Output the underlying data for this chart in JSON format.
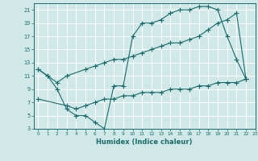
{
  "xlabel": "Humidex (Indice chaleur)",
  "xlim": [
    -0.5,
    23
  ],
  "ylim": [
    3,
    22
  ],
  "yticks": [
    3,
    5,
    7,
    9,
    11,
    13,
    15,
    17,
    19,
    21
  ],
  "xticks": [
    0,
    1,
    2,
    3,
    4,
    5,
    6,
    7,
    8,
    9,
    10,
    11,
    12,
    13,
    14,
    15,
    16,
    17,
    18,
    19,
    20,
    21,
    22,
    23
  ],
  "background_color": "#d0e8e8",
  "grid_color": "#b8d8d8",
  "line_color": "#1a6b6b",
  "line1_x": [
    0,
    1,
    2,
    3,
    4,
    5,
    6,
    7,
    8,
    9,
    10,
    11,
    12,
    13,
    14,
    15,
    16,
    17,
    18,
    19,
    20,
    21,
    22
  ],
  "line1_y": [
    12,
    11,
    9,
    6,
    5,
    5,
    4,
    3,
    9.5,
    9.5,
    17,
    19,
    19,
    19.5,
    20.5,
    21,
    21,
    21.5,
    21.5,
    21,
    17,
    13.5,
    10.5
  ],
  "line2_x": [
    0,
    1,
    2,
    3,
    5,
    6,
    7,
    8,
    9,
    10,
    11,
    12,
    13,
    14,
    15,
    16,
    17,
    18,
    19,
    20,
    21,
    22
  ],
  "line2_y": [
    12,
    11,
    10,
    11,
    12,
    12.5,
    13,
    13.5,
    13.5,
    14,
    14.5,
    15,
    15.5,
    16,
    16,
    16.5,
    17,
    18,
    19,
    19.5,
    20.5,
    10.5
  ],
  "line3_x": [
    0,
    3,
    4,
    5,
    6,
    7,
    8,
    9,
    10,
    11,
    12,
    13,
    14,
    15,
    16,
    17,
    18,
    19,
    20,
    21,
    22
  ],
  "line3_y": [
    7.5,
    6.5,
    6,
    6.5,
    7,
    7.5,
    7.5,
    8,
    8,
    8.5,
    8.5,
    8.5,
    9,
    9,
    9,
    9.5,
    9.5,
    10,
    10,
    10,
    10.5
  ]
}
